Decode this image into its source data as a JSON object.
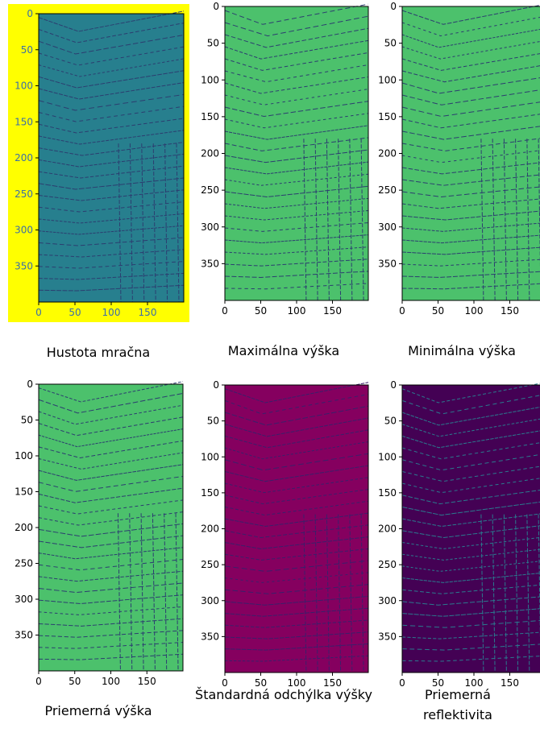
{
  "chart_data": [
    {
      "type": "image",
      "title": "Hustota mračna",
      "color": "#277f8e",
      "frame": "#ffff00",
      "tick_color": "#3b6ea8",
      "xlim": [
        0,
        200
      ],
      "ylim": [
        400,
        0
      ],
      "xticks": [
        0,
        50,
        100,
        150
      ],
      "yticks": [
        0,
        50,
        100,
        150,
        200,
        250,
        300,
        350
      ]
    },
    {
      "type": "image",
      "title": "Maximálna výška",
      "color": "#4cc16c",
      "xlim": [
        0,
        200
      ],
      "ylim": [
        400,
        0
      ],
      "xticks": [
        0,
        50,
        100,
        150
      ],
      "yticks": [
        0,
        50,
        100,
        150,
        200,
        250,
        300,
        350
      ]
    },
    {
      "type": "image",
      "title": "Minimálna výška",
      "color": "#4cc16c",
      "xlim": [
        0,
        200
      ],
      "ylim": [
        400,
        0
      ],
      "xticks": [
        0,
        50,
        100,
        150
      ],
      "yticks": [
        0,
        50,
        100,
        150,
        200,
        250,
        300,
        350
      ]
    },
    {
      "type": "image",
      "title": "Priemerná výška",
      "color": "#4cc16c",
      "xlim": [
        0,
        200
      ],
      "ylim": [
        400,
        0
      ],
      "xticks": [
        0,
        50,
        100,
        150
      ],
      "yticks": [
        0,
        50,
        100,
        150,
        200,
        250,
        300,
        350
      ]
    },
    {
      "type": "image",
      "title": "Štandardná odchýlka výšky",
      "color": "#85005f",
      "xlim": [
        0,
        200
      ],
      "ylim": [
        400,
        0
      ],
      "xticks": [
        0,
        50,
        100,
        150
      ],
      "yticks": [
        0,
        50,
        100,
        150,
        200,
        250,
        300,
        350
      ]
    },
    {
      "type": "image",
      "title": "Priemerná reflektivita",
      "color": "#440154",
      "xlim": [
        0,
        200
      ],
      "ylim": [
        400,
        0
      ],
      "xticks": [
        0,
        50,
        100,
        150
      ],
      "yticks": [
        0,
        50,
        100,
        150,
        200,
        250,
        300,
        350
      ]
    }
  ]
}
